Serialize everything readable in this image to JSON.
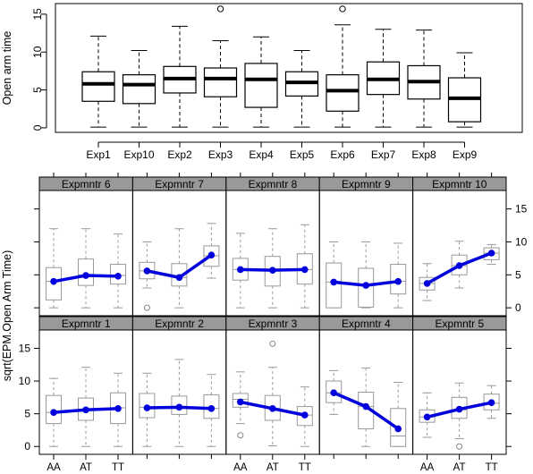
{
  "chart_data": [
    {
      "type": "box",
      "title": "",
      "xlabel": "",
      "ylabel": "Open arm time",
      "ylim": [
        0,
        16
      ],
      "yticks": [
        0,
        5,
        10,
        15
      ],
      "categories": [
        "Exp1",
        "Exp10",
        "Exp2",
        "Exp3",
        "Exp4",
        "Exp5",
        "Exp6",
        "Exp7",
        "Exp8",
        "Exp9"
      ],
      "boxes": [
        {
          "min": 0.1,
          "q1": 3.5,
          "median": 5.8,
          "q3": 7.4,
          "max": 12.1,
          "outliers": []
        },
        {
          "min": 0.1,
          "q1": 3.2,
          "median": 5.7,
          "q3": 7.0,
          "max": 10.2,
          "outliers": []
        },
        {
          "min": 0.1,
          "q1": 4.6,
          "median": 6.5,
          "q3": 8.1,
          "max": 13.4,
          "outliers": []
        },
        {
          "min": 0.1,
          "q1": 4.1,
          "median": 6.5,
          "q3": 7.9,
          "max": 11.5,
          "outliers": [
            15.7
          ]
        },
        {
          "min": 0.1,
          "q1": 2.7,
          "median": 6.4,
          "q3": 8.5,
          "max": 12.0,
          "outliers": []
        },
        {
          "min": 0.1,
          "q1": 4.2,
          "median": 6.0,
          "q3": 7.4,
          "max": 10.2,
          "outliers": []
        },
        {
          "min": 0.1,
          "q1": 2.2,
          "median": 4.9,
          "q3": 7.0,
          "max": 13.6,
          "outliers": [
            15.7
          ]
        },
        {
          "min": 0.1,
          "q1": 4.4,
          "median": 6.4,
          "q3": 8.7,
          "max": 13.0,
          "outliers": []
        },
        {
          "min": 0.1,
          "q1": 3.8,
          "median": 6.1,
          "q3": 8.2,
          "max": 12.9,
          "outliers": []
        },
        {
          "min": 0.1,
          "q1": 0.8,
          "median": 3.9,
          "q3": 6.6,
          "max": 9.9,
          "outliers": []
        }
      ]
    },
    {
      "type": "box",
      "title": "",
      "ylabel": "sqrt(EPM.Open Arm Time)",
      "ylim": [
        -1.2,
        17.8
      ],
      "yticks": [
        0,
        5,
        10,
        15
      ],
      "categories": [
        "AA",
        "AT",
        "TT"
      ],
      "panels": [
        {
          "label": "Expmntr 6",
          "means": [
            4.0,
            4.9,
            4.8
          ],
          "boxes": [
            {
              "min": 0.0,
              "q1": 1.2,
              "median": 4.0,
              "q3": 6.1,
              "max": 12.0,
              "outliers": []
            },
            {
              "min": 0.0,
              "q1": 3.4,
              "median": 5.0,
              "q3": 7.4,
              "max": 12.0,
              "outliers": []
            },
            {
              "min": 0.0,
              "q1": 3.6,
              "median": 4.9,
              "q3": 6.6,
              "max": 11.2,
              "outliers": []
            }
          ]
        },
        {
          "label": "Expmntr 7",
          "means": [
            5.6,
            4.6,
            8.0
          ],
          "boxes": [
            {
              "min": 3.0,
              "q1": 4.4,
              "median": 5.6,
              "q3": 6.9,
              "max": 10.0,
              "outliers": [
                0.0
              ]
            },
            {
              "min": 0.0,
              "q1": 3.3,
              "median": 4.6,
              "q3": 6.7,
              "max": 12.0,
              "outliers": []
            },
            {
              "min": 4.5,
              "q1": 6.3,
              "median": 7.9,
              "q3": 9.4,
              "max": 12.8,
              "outliers": []
            }
          ]
        },
        {
          "label": "Expmntr 8",
          "means": [
            5.8,
            5.7,
            5.8
          ],
          "boxes": [
            {
              "min": 0.0,
              "q1": 4.2,
              "median": 5.8,
              "q3": 7.5,
              "max": 11.3,
              "outliers": []
            },
            {
              "min": 0.0,
              "q1": 3.3,
              "median": 5.7,
              "q3": 7.8,
              "max": 12.0,
              "outliers": []
            },
            {
              "min": 0.0,
              "q1": 3.6,
              "median": 5.8,
              "q3": 8.2,
              "max": 12.6,
              "outliers": []
            }
          ]
        },
        {
          "label": "Expmntr 9",
          "means": [
            3.9,
            3.4,
            4.0
          ],
          "boxes": [
            {
              "min": 0.0,
              "q1": 0.0,
              "median": 3.9,
              "q3": 6.8,
              "max": 10.0,
              "outliers": []
            },
            {
              "min": 0.0,
              "q1": 0.1,
              "median": 3.4,
              "q3": 6.0,
              "max": 10.0,
              "outliers": []
            },
            {
              "min": 0.0,
              "q1": 2.1,
              "median": 4.0,
              "q3": 6.6,
              "max": 9.8,
              "outliers": []
            }
          ]
        },
        {
          "label": "Expmntr 10",
          "means": [
            3.7,
            6.4,
            8.3
          ],
          "boxes": [
            {
              "min": 1.1,
              "q1": 2.7,
              "median": 3.7,
              "q3": 4.6,
              "max": 6.7,
              "outliers": []
            },
            {
              "min": 3.0,
              "q1": 5.0,
              "median": 6.4,
              "q3": 8.0,
              "max": 10.1,
              "outliers": []
            },
            {
              "min": 6.6,
              "q1": 7.3,
              "median": 8.3,
              "q3": 9.1,
              "max": 9.6,
              "outliers": []
            }
          ]
        },
        {
          "label": "Expmntr 1",
          "means": [
            5.2,
            5.6,
            5.8
          ],
          "boxes": [
            {
              "min": 0.0,
              "q1": 3.5,
              "median": 5.2,
              "q3": 7.8,
              "max": 10.4,
              "outliers": []
            },
            {
              "min": 0.0,
              "q1": 4.0,
              "median": 5.6,
              "q3": 7.4,
              "max": 12.1,
              "outliers": []
            },
            {
              "min": 0.0,
              "q1": 3.5,
              "median": 5.9,
              "q3": 8.2,
              "max": 11.2,
              "outliers": []
            }
          ]
        },
        {
          "label": "Expmntr 2",
          "means": [
            5.9,
            6.0,
            5.8
          ],
          "boxes": [
            {
              "min": 0.0,
              "q1": 4.4,
              "median": 6.0,
              "q3": 8.1,
              "max": 11.2,
              "outliers": []
            },
            {
              "min": 0.0,
              "q1": 4.9,
              "median": 6.0,
              "q3": 7.7,
              "max": 13.3,
              "outliers": []
            },
            {
              "min": 0.0,
              "q1": 4.3,
              "median": 5.8,
              "q3": 7.9,
              "max": 11.0,
              "outliers": []
            }
          ]
        },
        {
          "label": "Expmntr 3",
          "means": [
            6.8,
            5.8,
            4.8
          ],
          "boxes": [
            {
              "min": 3.5,
              "q1": 6.0,
              "median": 7.2,
              "q3": 8.1,
              "max": 11.4,
              "outliers": [
                1.7
              ]
            },
            {
              "min": 0.1,
              "q1": 4.0,
              "median": 5.8,
              "q3": 7.8,
              "max": 12.1,
              "outliers": [
                15.7
              ]
            },
            {
              "min": 0.0,
              "q1": 3.2,
              "median": 4.8,
              "q3": 6.1,
              "max": 9.1,
              "outliers": []
            }
          ]
        },
        {
          "label": "Expmntr 4",
          "means": [
            8.2,
            6.1,
            2.7
          ],
          "boxes": [
            {
              "min": 4.9,
              "q1": 6.7,
              "median": 8.2,
              "q3": 10.0,
              "max": 11.6,
              "outliers": []
            },
            {
              "min": 0.0,
              "q1": 2.7,
              "median": 6.1,
              "q3": 8.3,
              "max": 12.0,
              "outliers": []
            },
            {
              "min": 0.0,
              "q1": 0.0,
              "median": 1.6,
              "q3": 5.8,
              "max": 9.8,
              "outliers": []
            }
          ]
        },
        {
          "label": "Expmntr 5",
          "means": [
            4.5,
            5.7,
            6.7
          ],
          "boxes": [
            {
              "min": 1.4,
              "q1": 3.7,
              "median": 4.5,
              "q3": 5.6,
              "max": 8.2,
              "outliers": []
            },
            {
              "min": 1.2,
              "q1": 4.3,
              "median": 5.6,
              "q3": 7.5,
              "max": 9.7,
              "outliers": [
                0.0
              ]
            },
            {
              "min": 4.3,
              "q1": 5.6,
              "median": 6.6,
              "q3": 8.0,
              "max": 9.3,
              "outliers": []
            }
          ]
        }
      ]
    }
  ]
}
